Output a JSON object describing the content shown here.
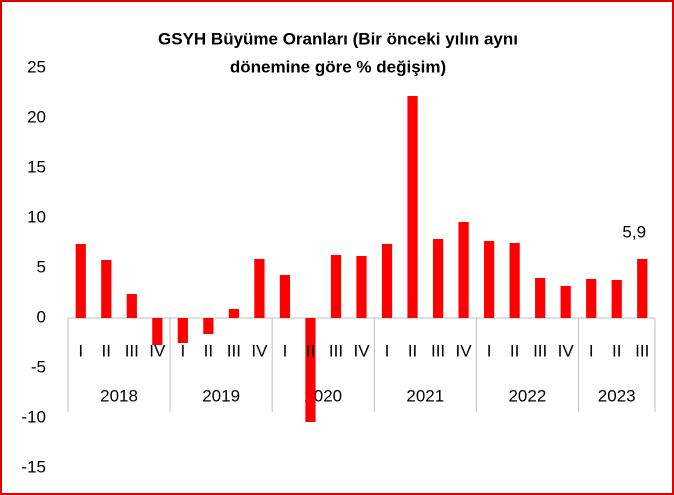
{
  "chart_data": {
    "type": "bar",
    "title": "GSYH Büyüme Oranları (Bir önceki yılın aynı dönemine göre % değişim)",
    "title_lines": [
      "GSYH Büyüme Oranları (Bir önceki yılın aynı",
      "dönemine göre % değişim)"
    ],
    "categories": [
      "I",
      "II",
      "III",
      "IV",
      "I",
      "II",
      "III",
      "IV",
      "I",
      "II",
      "III",
      "IV",
      "I",
      "II",
      "III",
      "IV",
      "I",
      "II",
      "III",
      "IV",
      "I",
      "II",
      "III"
    ],
    "years": [
      "2018",
      "2019",
      "2020",
      "2021",
      "2022",
      "2023"
    ],
    "values": [
      7.4,
      5.8,
      2.4,
      -2.7,
      -2.5,
      -1.6,
      0.9,
      5.9,
      4.3,
      -10.4,
      6.3,
      6.2,
      7.4,
      22.2,
      7.9,
      9.6,
      7.7,
      7.5,
      4.0,
      3.2,
      3.9,
      3.8,
      5.9
    ],
    "value_labels": [
      null,
      null,
      null,
      null,
      null,
      null,
      null,
      null,
      null,
      null,
      null,
      null,
      null,
      null,
      null,
      null,
      null,
      null,
      null,
      null,
      null,
      null,
      "5,9"
    ],
    "color": "#ff0000",
    "ylim": [
      -15,
      25
    ],
    "yticks": [
      -15,
      -10,
      -5,
      0,
      5,
      10,
      15,
      20,
      25
    ],
    "grid": false
  }
}
